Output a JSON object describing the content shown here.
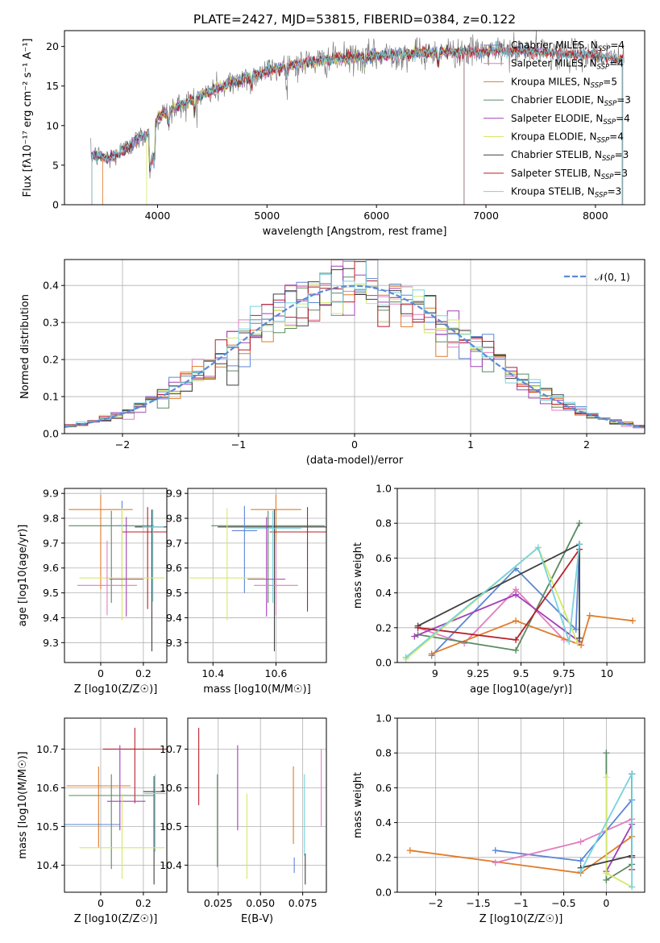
{
  "figure_title": "PLATE=2427, MJD=53815, FIBERID=0384, z=0.122",
  "colors": {
    "Chabrier MILES": "#5b86d6",
    "Salpeter MILES": "#e07ec0",
    "Kroupa MILES": "#e07b28",
    "Chabrier ELODIE": "#5a8a62",
    "Salpeter ELODIE": "#a040b8",
    "Kroupa ELODIE": "#d4e86a",
    "Chabrier STELIB": "#404040",
    "Salpeter STELIB": "#b81f2a",
    "Kroupa STELIB": "#78d2de",
    "data": "#808080",
    "normal": "#5b8bd6"
  },
  "chart_data": [
    {
      "id": "spectrum",
      "type": "line",
      "title": "PLATE=2427, MJD=53815, FIBERID=0384, z=0.122",
      "xlabel": "wavelength [Angstrom, rest frame]",
      "ylabel": "Flux [fλ10⁻¹⁷ erg cm⁻² s⁻¹ A⁻¹]",
      "xlim": [
        3150,
        8450
      ],
      "ylim": [
        0,
        22
      ],
      "xticks": [
        4000,
        5000,
        6000,
        7000,
        8000
      ],
      "yticks": [
        0,
        5,
        10,
        15,
        20
      ],
      "grid": false,
      "legend_position": "right",
      "continuum_x": [
        3400,
        3550,
        3700,
        3850,
        3950,
        4000,
        4200,
        4400,
        4600,
        4800,
        5000,
        5200,
        5400,
        5600,
        5800,
        6000,
        6200,
        6400,
        6600,
        6800,
        7000,
        7200,
        7400,
        7600,
        7800,
        8000,
        8250
      ],
      "continuum_y": [
        6.3,
        5.8,
        7.0,
        8.5,
        9.3,
        11.0,
        12.5,
        13.8,
        15.0,
        16.0,
        16.9,
        17.6,
        18.0,
        18.3,
        18.6,
        18.8,
        19.0,
        19.2,
        19.3,
        19.3,
        19.3,
        19.4,
        19.4,
        19.2,
        19.0,
        18.9,
        18.4
      ],
      "series": [
        {
          "name": "Chabrier MILES, N_SSP=4",
          "label": "Chabrier MILES, N",
          "sub": "SSP",
          "suffix": "=4",
          "x_start": 3400,
          "x_end": 8250
        },
        {
          "name": "Salpeter MILES, N_SSP=4",
          "label": "Salpeter MILES, N",
          "sub": "SSP",
          "suffix": "=4",
          "x_start": 3400,
          "x_end": 8250
        },
        {
          "name": "Kroupa MILES, N_SSP=5",
          "label": "Kroupa MILES, N",
          "sub": "SSP",
          "suffix": "=5",
          "x_start": 3500,
          "x_end": 8250
        },
        {
          "name": "Chabrier ELODIE, N_SSP=3",
          "label": "Chabrier ELODIE, N",
          "sub": "SSP",
          "suffix": "=3",
          "x_start": 3400,
          "x_end": 6800
        },
        {
          "name": "Salpeter ELODIE, N_SSP=4",
          "label": "Salpeter ELODIE, N",
          "sub": "SSP",
          "suffix": "=4",
          "x_start": 3400,
          "x_end": 6800
        },
        {
          "name": "Kroupa ELODIE, N_SSP=4",
          "label": "Kroupa ELODIE, N",
          "sub": "SSP",
          "suffix": "=4",
          "x_start": 3900,
          "x_end": 6800
        },
        {
          "name": "Chabrier STELIB, N_SSP=3",
          "label": "Chabrier STELIB, N",
          "sub": "SSP",
          "suffix": "=3",
          "x_start": 3400,
          "x_end": 8250
        },
        {
          "name": "Salpeter STELIB, N_SSP=3",
          "label": "Salpeter STELIB, N",
          "sub": "SSP",
          "suffix": "=3",
          "x_start": 3400,
          "x_end": 8250
        },
        {
          "name": "Kroupa STELIB, N_SSP=3",
          "label": "Kroupa STELIB, N",
          "sub": "SSP",
          "suffix": "=3",
          "x_start": 3400,
          "x_end": 8250
        }
      ]
    },
    {
      "id": "residuals",
      "type": "line",
      "xlabel": "(data-model)/error",
      "ylabel": "Normed distribution",
      "xlim": [
        -2.5,
        2.5
      ],
      "ylim": [
        0,
        0.47
      ],
      "xticks": [
        -2,
        -1,
        0,
        1,
        2
      ],
      "yticks": [
        0.0,
        0.1,
        0.2,
        0.3,
        0.4
      ],
      "grid": true,
      "legend_position": "top-right",
      "legend_label": "𝒩(0, 1)",
      "bin_width": 0.1,
      "normal_curve": {
        "mean": 0,
        "sigma": 1
      }
    },
    {
      "id": "age_vs_Z",
      "type": "scatter",
      "xlabel": "Z [log10(Z/Z☉)]",
      "ylabel": "age [log10(age/yr)]",
      "xlim": [
        -0.17,
        0.31
      ],
      "ylim": [
        9.22,
        9.92
      ],
      "xticks": [
        0.0,
        0.2
      ],
      "yticks": [
        9.3,
        9.4,
        9.5,
        9.6,
        9.7,
        9.8,
        9.9
      ],
      "grid": true,
      "points": [
        {
          "series": "Kroupa MILES",
          "x": 0.0,
          "xerr": 0.15,
          "y": 9.835,
          "yerr_lo": 0.32,
          "yerr_hi": 0.06
        },
        {
          "series": "Chabrier ELODIE",
          "x": 0.05,
          "xerr": 0.2,
          "y": 9.77,
          "yerr_lo": 0.31,
          "yerr_hi": 0.06
        },
        {
          "series": "Salpeter STELIB",
          "x": 0.22,
          "xerr": 0.12,
          "y": 9.745,
          "yerr_lo": 0.31,
          "yerr_hi": 0.1
        },
        {
          "series": "Chabrier STELIB",
          "x": 0.24,
          "xerr": 0.08,
          "y": 9.765,
          "yerr_lo": 0.5,
          "yerr_hi": 0.07
        },
        {
          "series": "Kroupa STELIB",
          "x": 0.245,
          "xerr": 0.05,
          "y": 9.765,
          "yerr_lo": 0.3,
          "yerr_hi": 0.07
        },
        {
          "series": "Chabrier MILES",
          "x": 0.1,
          "xerr": 0.02,
          "y": 9.77,
          "yerr_lo": 0.25,
          "yerr_hi": 0.1
        },
        {
          "series": "Kroupa ELODIE",
          "x": 0.1,
          "xerr": 0.2,
          "y": 9.56,
          "yerr_lo": 0.17,
          "yerr_hi": 0.28
        },
        {
          "series": "Salpeter ELODIE",
          "x": 0.12,
          "xerr": 0.08,
          "y": 9.555,
          "yerr_lo": 0.15,
          "yerr_hi": 0.25
        },
        {
          "series": "Salpeter MILES",
          "x": 0.03,
          "xerr": 0.14,
          "y": 9.53,
          "yerr_lo": 0.12,
          "yerr_hi": 0.18
        }
      ]
    },
    {
      "id": "age_vs_mass",
      "type": "scatter",
      "xlabel": "mass [log10(M/M☉)]",
      "ylabel": "",
      "xlim": [
        10.32,
        10.76
      ],
      "ylim": [
        9.22,
        9.92
      ],
      "xticks": [
        10.4,
        10.6
      ],
      "yticks": [
        9.3,
        9.4,
        9.5,
        9.6,
        9.7,
        9.8,
        9.9
      ],
      "grid": true,
      "points": [
        {
          "series": "Kroupa MILES",
          "x": 10.6,
          "xerr": 0.08,
          "y": 9.835,
          "yerr_lo": 0.32,
          "yerr_hi": 0.06
        },
        {
          "series": "Chabrier ELODIE",
          "x": 10.575,
          "xerr": 0.18,
          "y": 9.77,
          "yerr_lo": 0.31,
          "yerr_hi": 0.06
        },
        {
          "series": "Chabrier STELIB",
          "x": 10.595,
          "xerr": 0.18,
          "y": 9.765,
          "yerr_lo": 0.5,
          "yerr_hi": 0.07
        },
        {
          "series": "Salpeter STELIB",
          "x": 10.7,
          "xerr": 0.12,
          "y": 9.745,
          "yerr_lo": 0.32,
          "yerr_hi": 0.1
        },
        {
          "series": "Chabrier MILES",
          "x": 10.5,
          "xerr": 0.04,
          "y": 9.75,
          "yerr_lo": 0.25,
          "yerr_hi": 0.1
        },
        {
          "series": "Kroupa STELIB",
          "x": 10.59,
          "xerr": 0.09,
          "y": 9.76,
          "yerr_lo": 0.3,
          "yerr_hi": 0.07
        },
        {
          "series": "Kroupa ELODIE",
          "x": 10.445,
          "xerr": 0.12,
          "y": 9.56,
          "yerr_lo": 0.17,
          "yerr_hi": 0.28
        },
        {
          "series": "Salpeter ELODIE",
          "x": 10.57,
          "xerr": 0.06,
          "y": 9.555,
          "yerr_lo": 0.15,
          "yerr_hi": 0.25
        },
        {
          "series": "Salpeter MILES",
          "x": 10.6,
          "xerr": 0.07,
          "y": 9.53,
          "yerr_lo": 0.12,
          "yerr_hi": 0.18
        }
      ]
    },
    {
      "id": "mass_weight_vs_age",
      "type": "line",
      "xlabel": "age [log10(age/yr)]",
      "ylabel": "mass weight",
      "xlim": [
        8.78,
        10.22
      ],
      "ylim": [
        0,
        1
      ],
      "xticks": [
        9.0,
        9.25,
        9.5,
        9.75,
        10.0
      ],
      "yticks": [
        0.0,
        0.2,
        0.4,
        0.6,
        0.8,
        1.0
      ],
      "grid": true,
      "series": [
        {
          "name": "Chabrier MILES",
          "x": [
            8.98,
            9.47,
            9.82,
            9.84
          ],
          "y": [
            0.04,
            0.54,
            0.19,
            0.68
          ]
        },
        {
          "name": "Salpeter MILES",
          "x": [
            8.9,
            9.17,
            9.47,
            9.75
          ],
          "y": [
            0.2,
            0.11,
            0.42,
            0.13
          ]
        },
        {
          "name": "Kroupa MILES",
          "x": [
            8.98,
            9.47,
            9.85,
            9.9,
            10.15
          ],
          "y": [
            0.05,
            0.24,
            0.1,
            0.27,
            0.24
          ]
        },
        {
          "name": "Chabrier ELODIE",
          "x": [
            8.9,
            9.47,
            9.84
          ],
          "y": [
            0.16,
            0.07,
            0.8
          ]
        },
        {
          "name": "Salpeter ELODIE",
          "x": [
            8.88,
            9.47,
            9.84
          ],
          "y": [
            0.15,
            0.39,
            0.12
          ]
        },
        {
          "name": "Kroupa ELODIE",
          "x": [
            8.83,
            9.6,
            9.83
          ],
          "y": [
            0.02,
            0.66,
            0.11
          ]
        },
        {
          "name": "Chabrier STELIB",
          "x": [
            8.9,
            9.84,
            9.84
          ],
          "y": [
            0.21,
            0.68,
            0.14
          ]
        },
        {
          "name": "Salpeter STELIB",
          "x": [
            8.9,
            9.47,
            9.84
          ],
          "y": [
            0.2,
            0.13,
            0.65
          ]
        },
        {
          "name": "Kroupa STELIB",
          "x": [
            8.83,
            9.6,
            9.78,
            9.84
          ],
          "y": [
            0.03,
            0.66,
            0.12,
            0.68
          ]
        }
      ]
    },
    {
      "id": "mass_vs_Z",
      "type": "scatter",
      "xlabel": "Z [log10(Z/Z☉)]",
      "ylabel": "mass [log10(M/M☉)]",
      "xlim": [
        -0.17,
        0.31
      ],
      "ylim": [
        10.33,
        10.78
      ],
      "xticks": [
        0.0,
        0.2
      ],
      "yticks": [
        10.4,
        10.5,
        10.6,
        10.7
      ],
      "grid": true,
      "points": [
        {
          "series": "Salpeter STELIB",
          "x": 0.16,
          "xerr": 0.15,
          "y": 10.7,
          "yerr_lo": 0.14,
          "yerr_hi": 0.055
        },
        {
          "series": "Salpeter ELODIE",
          "x": 0.09,
          "xerr": 0.0,
          "y": 10.64,
          "yerr_lo": 0.15,
          "yerr_hi": 0.07
        },
        {
          "series": "Kroupa MILES",
          "x": -0.01,
          "xerr": 0.15,
          "y": 10.605,
          "yerr_lo": 0.16,
          "yerr_hi": 0.05
        },
        {
          "series": "Chabrier STELIB",
          "x": 0.25,
          "xerr": 0.05,
          "y": 10.59,
          "yerr_lo": 0.24,
          "yerr_hi": 0.04
        },
        {
          "series": "Kroupa STELIB",
          "x": 0.255,
          "xerr": 0.05,
          "y": 10.585,
          "yerr_lo": 0.15,
          "yerr_hi": 0.05
        },
        {
          "series": "Chabrier ELODIE",
          "x": 0.05,
          "xerr": 0.2,
          "y": 10.58,
          "yerr_lo": 0.19,
          "yerr_hi": 0.055
        },
        {
          "series": "Salpeter ELODIE",
          "x": 0.12,
          "xerr": 0.09,
          "y": 10.565,
          "yerr_lo": 0.0,
          "yerr_hi": 0.0
        },
        {
          "series": "Chabrier MILES",
          "x": -0.06,
          "xerr": 0.15,
          "y": 10.505,
          "yerr_lo": 0.0,
          "yerr_hi": 0.0
        },
        {
          "series": "Kroupa ELODIE",
          "x": 0.1,
          "xerr": 0.2,
          "y": 10.445,
          "yerr_lo": 0.08,
          "yerr_hi": 0.14
        }
      ]
    },
    {
      "id": "mass_vs_ebv",
      "type": "scatter",
      "xlabel": "E(B-V)",
      "ylabel": "",
      "xlim": [
        0.007,
        0.089
      ],
      "ylim": [
        10.33,
        10.78
      ],
      "xticks": [
        0.025,
        0.05,
        0.075
      ],
      "xticklabels": [
        "0.025",
        "0.050",
        "0.075"
      ],
      "yticks": [
        10.4,
        10.5,
        10.6,
        10.7
      ],
      "grid": true,
      "points": [
        {
          "series": "Salpeter STELIB",
          "x": 0.0135,
          "y": 10.655,
          "yerr": 0.1
        },
        {
          "series": "Chabrier ELODIE",
          "x": 0.0245,
          "y": 10.515,
          "yerr": 0.12
        },
        {
          "series": "Salpeter ELODIE",
          "x": 0.0365,
          "y": 10.6,
          "yerr": 0.11
        },
        {
          "series": "Kroupa ELODIE",
          "x": 0.042,
          "y": 10.475,
          "yerr": 0.11
        },
        {
          "series": "Kroupa MILES",
          "x": 0.0695,
          "y": 10.555,
          "yerr": 0.1
        },
        {
          "series": "Chabrier MILES",
          "x": 0.07,
          "y": 10.4,
          "yerr": 0.02
        },
        {
          "series": "Kroupa STELIB",
          "x": 0.076,
          "y": 10.53,
          "yerr": 0.105
        },
        {
          "series": "Chabrier STELIB",
          "x": 0.0765,
          "y": 10.39,
          "yerr": 0.04
        },
        {
          "series": "Salpeter MILES",
          "x": 0.086,
          "y": 10.6,
          "yerr": 0.1
        }
      ]
    },
    {
      "id": "mass_weight_vs_Z",
      "type": "line",
      "xlabel": "Z [log10(Z/Z☉)]",
      "ylabel": "mass weight",
      "xlim": [
        -2.45,
        0.45
      ],
      "ylim": [
        0,
        1
      ],
      "xticks": [
        -2.0,
        -1.5,
        -1.0,
        -0.5,
        0.0
      ],
      "yticks": [
        0.0,
        0.2,
        0.4,
        0.6,
        0.8,
        1.0
      ],
      "grid": true,
      "series": [
        {
          "name": "Kroupa MILES",
          "x": [
            -2.3,
            -0.3,
            0.3
          ],
          "y": [
            0.24,
            0.11,
            0.32
          ]
        },
        {
          "name": "Chabrier MILES",
          "x": [
            -1.3,
            -0.3,
            0.3,
            0.3
          ],
          "y": [
            0.24,
            0.18,
            0.53,
            0.68
          ]
        },
        {
          "name": "Salpeter MILES",
          "x": [
            -1.3,
            -0.3,
            0.3
          ],
          "y": [
            0.17,
            0.29,
            0.42
          ]
        },
        {
          "name": "Chabrier ELODIE",
          "x": [
            0.0,
            0.0,
            0.3,
            0.3
          ],
          "y": [
            0.8,
            0.07,
            0.16,
            0.68
          ]
        },
        {
          "name": "Salpeter ELODIE",
          "x": [
            0.0,
            0.3
          ],
          "y": [
            0.12,
            0.39
          ]
        },
        {
          "name": "Kroupa ELODIE",
          "x": [
            0.0,
            0.0,
            0.3
          ],
          "y": [
            0.66,
            0.11,
            0.03
          ]
        },
        {
          "name": "Chabrier STELIB",
          "x": [
            -0.3,
            0.3,
            0.3
          ],
          "y": [
            0.14,
            0.21,
            0.68
          ]
        },
        {
          "name": "Salpeter STELIB",
          "x": [
            0.3,
            0.3
          ],
          "y": [
            0.13,
            0.2
          ]
        },
        {
          "name": "Kroupa STELIB",
          "x": [
            -0.3,
            0.3,
            0.3
          ],
          "y": [
            0.12,
            0.68,
            0.03
          ]
        }
      ]
    }
  ]
}
